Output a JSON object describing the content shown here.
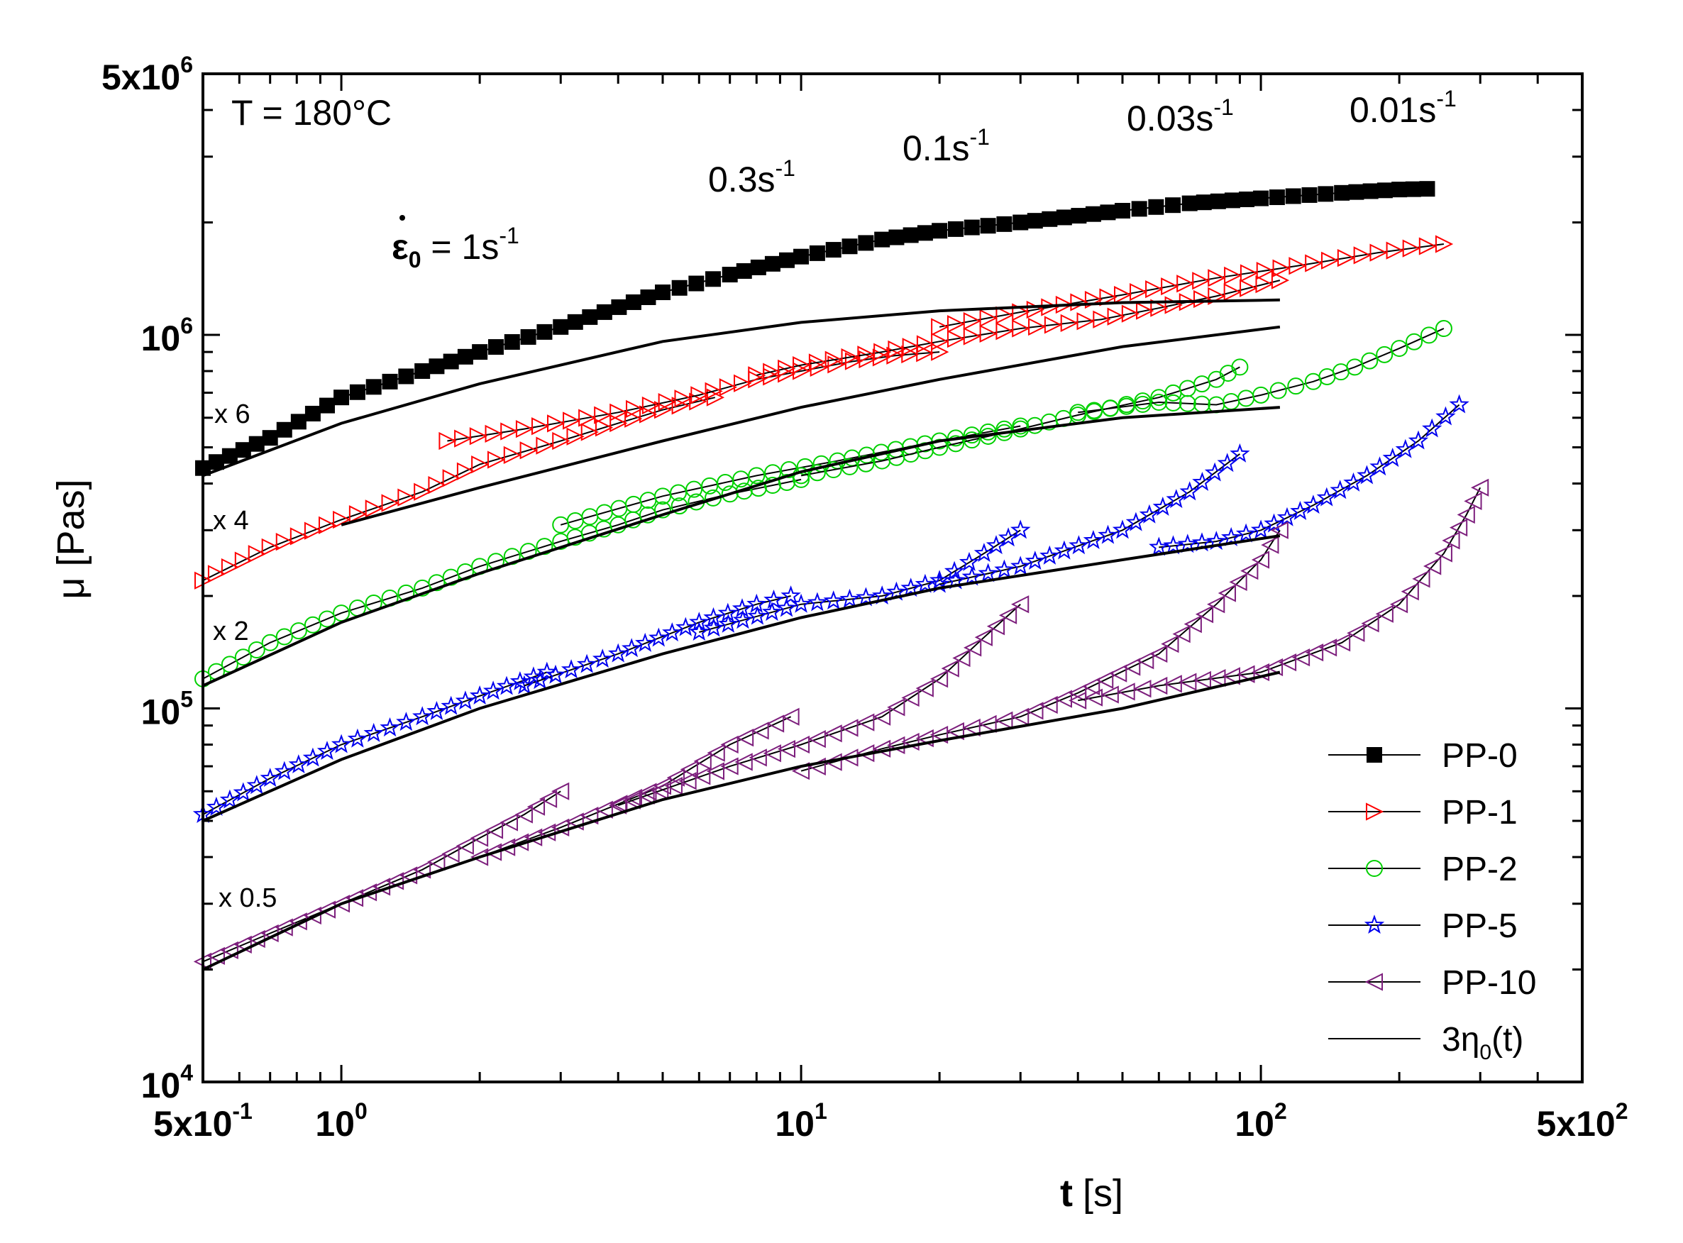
{
  "chart_data": {
    "type": "line",
    "x_scale": "log",
    "y_scale": "log",
    "xlim": [
      0.5,
      500
    ],
    "ylim": [
      10000,
      5000000
    ],
    "xlabel": {
      "bold": "t",
      "unit": "[s]"
    },
    "ylabel": "μ [Pas]",
    "x_ticks": [
      {
        "value": 0.5,
        "base": "5x10",
        "exp": "-1"
      },
      {
        "value": 1,
        "base": "10",
        "exp": "0"
      },
      {
        "value": 10,
        "base": "10",
        "exp": "1"
      },
      {
        "value": 100,
        "base": "10",
        "exp": "2"
      },
      {
        "value": 500,
        "base": "5x10",
        "exp": "2"
      }
    ],
    "y_ticks": [
      {
        "value": 10000,
        "base": "10",
        "exp": "4"
      },
      {
        "value": 100000,
        "base": "10",
        "exp": "5"
      },
      {
        "value": 1000000,
        "base": "10",
        "exp": "6"
      },
      {
        "value": 5000000,
        "base": "5x10",
        "exp": "6"
      }
    ],
    "annotations": {
      "temperature": "T = 180°C",
      "rate_eps0": {
        "symbol": "ε",
        "sub": "0",
        "text": " = 1s",
        "exp": "-1"
      },
      "rate_03": {
        "text": "0.3s",
        "exp": "-1"
      },
      "rate_01": {
        "text": "0.1s",
        "exp": "-1"
      },
      "rate_003": {
        "text": "0.03s",
        "exp": "-1"
      },
      "rate_001": {
        "text": "0.01s",
        "exp": "-1"
      }
    },
    "multipliers": [
      "x 6",
      "x 4",
      "x 2",
      "x 0.5"
    ],
    "series": [
      {
        "name": "PP-0",
        "color": "#000000",
        "marker": "square",
        "curves": [
          {
            "x": [
              0.5,
              0.7,
              1,
              1.5,
              2,
              3,
              5,
              7,
              10,
              15,
              20,
              30,
              50,
              70,
              100,
              150,
              200,
              230
            ],
            "y": [
              440000,
              530000,
              680000,
              800000,
              900000,
              1050000,
              1300000,
              1450000,
              1620000,
              1800000,
              1900000,
              2000000,
              2150000,
              2250000,
              2320000,
              2400000,
              2450000,
              2460000
            ]
          }
        ]
      },
      {
        "name": "PP-1",
        "color": "#ff0000",
        "marker": "triangle-right",
        "curves": [
          {
            "x": [
              0.5,
              0.7,
              1,
              1.5,
              2,
              3,
              4,
              5,
              6.5
            ],
            "y": [
              220000,
              270000,
              320000,
              380000,
              450000,
              520000,
              580000,
              630000,
              680000
            ]
          },
          {
            "x": [
              1.7,
              2.5,
              4,
              6,
              8,
              10,
              13,
              16,
              20
            ],
            "y": [
              520000,
              560000,
              620000,
              690000,
              760000,
              800000,
              850000,
              880000,
              900000
            ]
          },
          {
            "x": [
              8,
              10,
              15,
              20,
              30,
              45,
              60,
              80,
              110
            ],
            "y": [
              780000,
              830000,
              900000,
              960000,
              1040000,
              1100000,
              1180000,
              1270000,
              1400000
            ]
          },
          {
            "x": [
              20,
              30,
              50,
              80,
              120,
              180,
              250
            ],
            "y": [
              1050000,
              1150000,
              1280000,
              1420000,
              1530000,
              1660000,
              1750000
            ]
          }
        ]
      },
      {
        "name": "PP-2",
        "color": "#00d000",
        "marker": "circle",
        "curves": [
          {
            "x": [
              0.5,
              0.7,
              1,
              1.5,
              2,
              3,
              4,
              5,
              7,
              10
            ],
            "y": [
              120000,
              150000,
              180000,
              210000,
              240000,
              280000,
              310000,
              340000,
              375000,
              410000
            ]
          },
          {
            "x": [
              3,
              5,
              8,
              12,
              20,
              30
            ],
            "y": [
              310000,
              370000,
              420000,
              460000,
              520000,
              570000
            ]
          },
          {
            "x": [
              10,
              15,
              20,
              30,
              40,
              60,
              80,
              90
            ],
            "y": [
              420000,
              460000,
              500000,
              560000,
              610000,
              680000,
              760000,
              820000
            ]
          },
          {
            "x": [
              40,
              60,
              80,
              100,
              130,
              160,
              200,
              250
            ],
            "y": [
              620000,
              660000,
              650000,
              690000,
              750000,
              820000,
              920000,
              1040000
            ]
          }
        ]
      },
      {
        "name": "PP-5",
        "color": "#0000ee",
        "marker": "star",
        "curves": [
          {
            "x": [
              0.5,
              0.7,
              1,
              1.5,
              2,
              2.8
            ],
            "y": [
              52000,
              65000,
              80000,
              95000,
              108000,
              125000
            ]
          },
          {
            "x": [
              2.5,
              4,
              6,
              8,
              9.5
            ],
            "y": [
              115000,
              140000,
              170000,
              190000,
              200000
            ]
          },
          {
            "x": [
              6,
              10,
              15,
              20,
              25,
              30
            ],
            "y": [
              160000,
              190000,
              200000,
              220000,
              260000,
              300000
            ]
          },
          {
            "x": [
              20,
              30,
              50,
              70,
              90
            ],
            "y": [
              215000,
              240000,
              300000,
              380000,
              480000
            ]
          },
          {
            "x": [
              60,
              80,
              100,
              130,
              170,
              220,
              270
            ],
            "y": [
              270000,
              280000,
              300000,
              350000,
              420000,
              520000,
              650000
            ]
          }
        ]
      },
      {
        "name": "PP-10",
        "color": "#7d1f7d",
        "marker": "triangle-left",
        "curves": [
          {
            "x": [
              0.5,
              0.7,
              1,
              1.5,
              2,
              2.5,
              3
            ],
            "y": [
              21000,
              25000,
              30000,
              37000,
              45000,
              52000,
              60000
            ]
          },
          {
            "x": [
              2,
              3,
              5,
              7,
              9.5
            ],
            "y": [
              40000,
              48000,
              62000,
              80000,
              95000
            ]
          },
          {
            "x": [
              4,
              7,
              10,
              15,
              20,
              25,
              30
            ],
            "y": [
              55000,
              70000,
              80000,
              95000,
              120000,
              155000,
              190000
            ]
          },
          {
            "x": [
              10,
              15,
              20,
              30,
              40,
              60,
              80,
              100,
              110
            ],
            "y": [
              68000,
              78000,
              85000,
              95000,
              110000,
              140000,
              190000,
              250000,
              300000
            ]
          },
          {
            "x": [
              40,
              60,
              100,
              150,
              200,
              250,
              280,
              300
            ],
            "y": [
              105000,
              115000,
              125000,
              150000,
              190000,
              260000,
              330000,
              390000
            ]
          }
        ]
      },
      {
        "name": "3η₀(t)",
        "color": "#000000",
        "marker": "none",
        "legend_label": {
          "text": "3η",
          "sub": "0",
          "tail": "(t)"
        },
        "curves": [
          {
            "x": [
              0.5,
              1,
              2,
              5,
              10,
              20,
              50,
              110
            ],
            "y": [
              420000,
              580000,
              740000,
              960000,
              1080000,
              1160000,
              1220000,
              1240000
            ]
          },
          {
            "x": [
              1,
              2,
              5,
              10,
              20,
              50,
              110
            ],
            "y": [
              310000,
              390000,
              520000,
              640000,
              760000,
              930000,
              1050000
            ]
          },
          {
            "x": [
              0.5,
              1,
              2,
              5,
              10,
              20,
              50,
              110
            ],
            "y": [
              115000,
              170000,
              230000,
              330000,
              430000,
              520000,
              600000,
              640000
            ]
          },
          {
            "x": [
              0.5,
              1,
              2,
              5,
              10,
              20,
              50,
              110
            ],
            "y": [
              50000,
              73000,
              100000,
              140000,
              175000,
              210000,
              250000,
              290000
            ]
          },
          {
            "x": [
              0.5,
              1,
              2,
              5,
              10,
              20,
              50,
              110
            ],
            "y": [
              20000,
              30000,
              40000,
              57000,
              70000,
              82000,
              100000,
              125000
            ]
          }
        ]
      }
    ]
  }
}
